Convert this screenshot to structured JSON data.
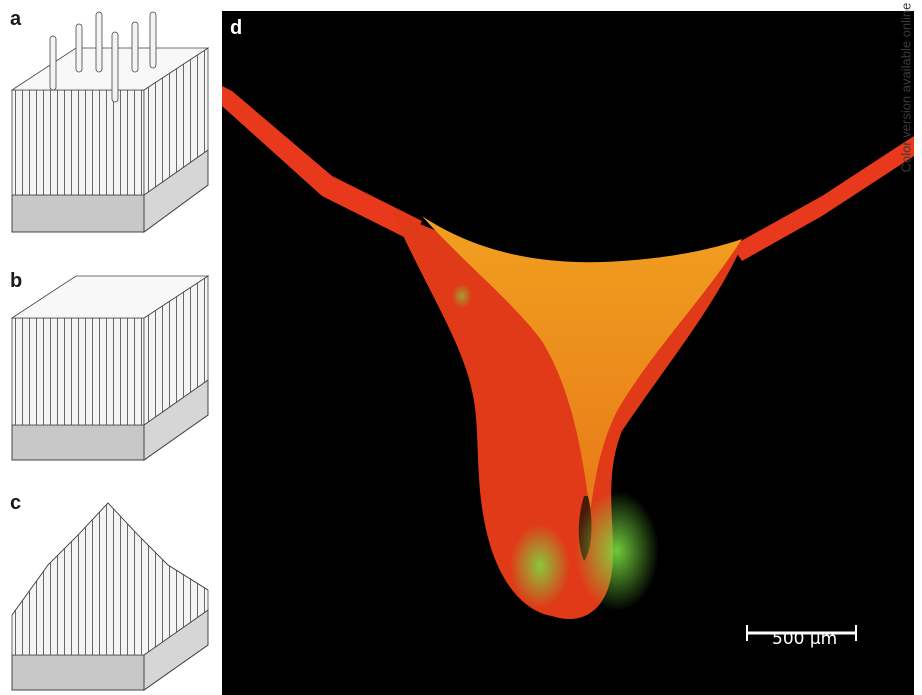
{
  "panels": {
    "a": "a",
    "b": "b",
    "c": "c",
    "d": "d"
  },
  "scale_bar": {
    "label": "500 µm"
  },
  "side_note": "Color version available online",
  "colors": {
    "background": "#000000",
    "tissue_red": "#e8391c",
    "tissue_orange": "#f08a1e",
    "fluorescent_green": "#6dd23a",
    "schematic_gray": "#c8c8c8"
  }
}
